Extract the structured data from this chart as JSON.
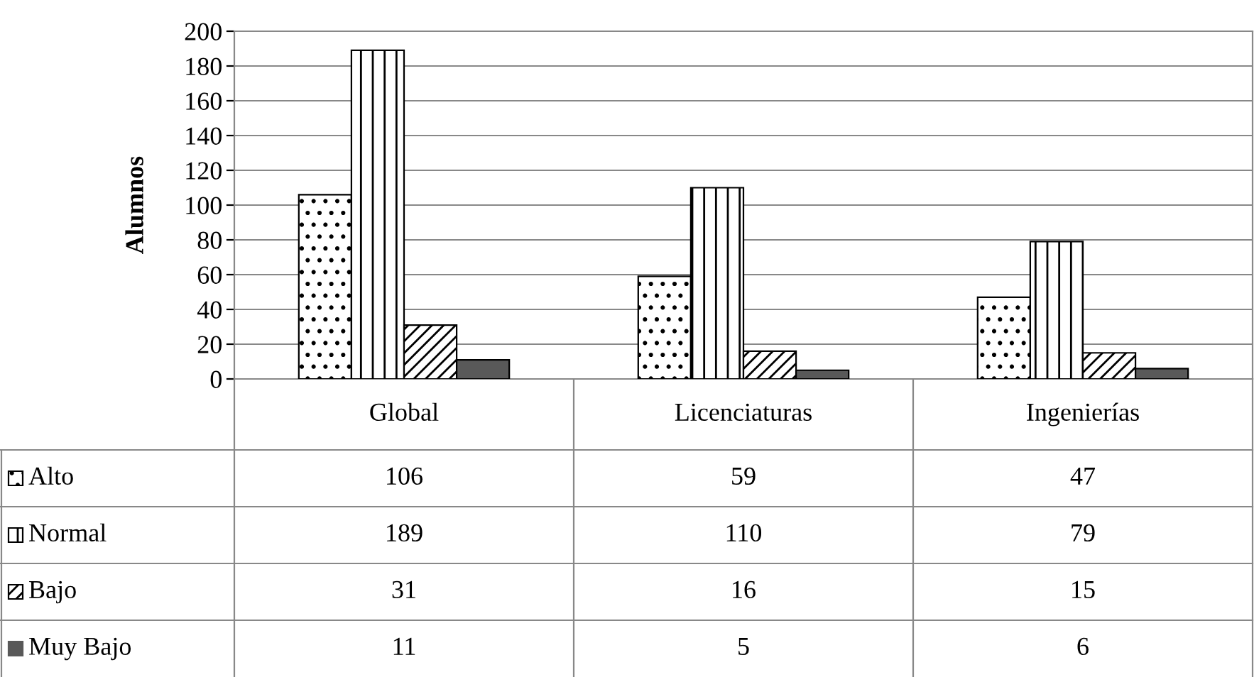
{
  "chart_data": {
    "type": "bar",
    "ylabel": "Alumnos",
    "categories": [
      "Global",
      "Licenciaturas",
      "Ingenierías"
    ],
    "series": [
      {
        "name": "Alto",
        "color": "#ffffff",
        "values": [
          106,
          59,
          47
        ]
      },
      {
        "name": "Normal",
        "color": "#ffffff",
        "values": [
          189,
          110,
          79
        ]
      },
      {
        "name": "Bajo",
        "color": "#ffffff",
        "values": [
          31,
          16,
          15
        ]
      },
      {
        "name": "Muy Bajo",
        "color": "#595959",
        "values": [
          11,
          5,
          6
        ]
      }
    ],
    "ylim": [
      0,
      200
    ],
    "yticks": [
      0,
      20,
      40,
      60,
      80,
      100,
      120,
      140,
      160,
      180,
      200
    ],
    "grid": "y",
    "legend": "bottom",
    "data_labels": true
  }
}
